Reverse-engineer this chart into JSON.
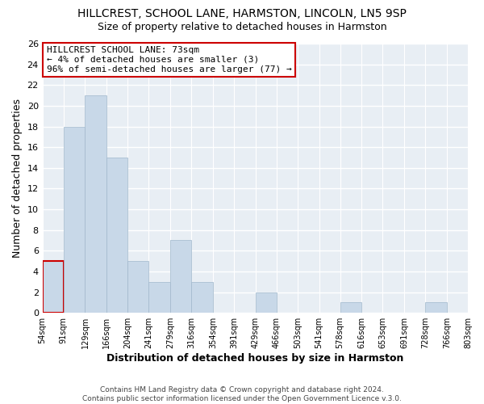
{
  "title": "HILLCREST, SCHOOL LANE, HARMSTON, LINCOLN, LN5 9SP",
  "subtitle": "Size of property relative to detached houses in Harmston",
  "xlabel": "Distribution of detached houses by size in Harmston",
  "ylabel": "Number of detached properties",
  "bin_edges": [
    54,
    91,
    129,
    166,
    204,
    241,
    279,
    316,
    354,
    391,
    429,
    466,
    503,
    541,
    578,
    616,
    653,
    691,
    728,
    766,
    803
  ],
  "bar_heights": [
    5,
    18,
    21,
    15,
    5,
    3,
    7,
    3,
    0,
    0,
    2,
    0,
    0,
    0,
    1,
    0,
    0,
    0,
    1,
    0
  ],
  "bar_color": "#c8d8e8",
  "bar_edge_color": "#a0b8cc",
  "highlight_bin_index": 0,
  "highlight_edge_color": "#cc0000",
  "annotation_box_edge_color": "#cc0000",
  "annotation_lines": [
    "HILLCREST SCHOOL LANE: 73sqm",
    "← 4% of detached houses are smaller (3)",
    "96% of semi-detached houses are larger (77) →"
  ],
  "ylim": [
    0,
    26
  ],
  "yticks": [
    0,
    2,
    4,
    6,
    8,
    10,
    12,
    14,
    16,
    18,
    20,
    22,
    24,
    26
  ],
  "x_tick_labels": [
    "54sqm",
    "91sqm",
    "129sqm",
    "166sqm",
    "204sqm",
    "241sqm",
    "279sqm",
    "316sqm",
    "354sqm",
    "391sqm",
    "429sqm",
    "466sqm",
    "503sqm",
    "541sqm",
    "578sqm",
    "616sqm",
    "653sqm",
    "691sqm",
    "728sqm",
    "766sqm",
    "803sqm"
  ],
  "footer_lines": [
    "Contains HM Land Registry data © Crown copyright and database right 2024.",
    "Contains public sector information licensed under the Open Government Licence v.3.0."
  ],
  "background_color": "#ffffff",
  "plot_bg_color": "#e8eef4",
  "grid_color": "#ffffff"
}
